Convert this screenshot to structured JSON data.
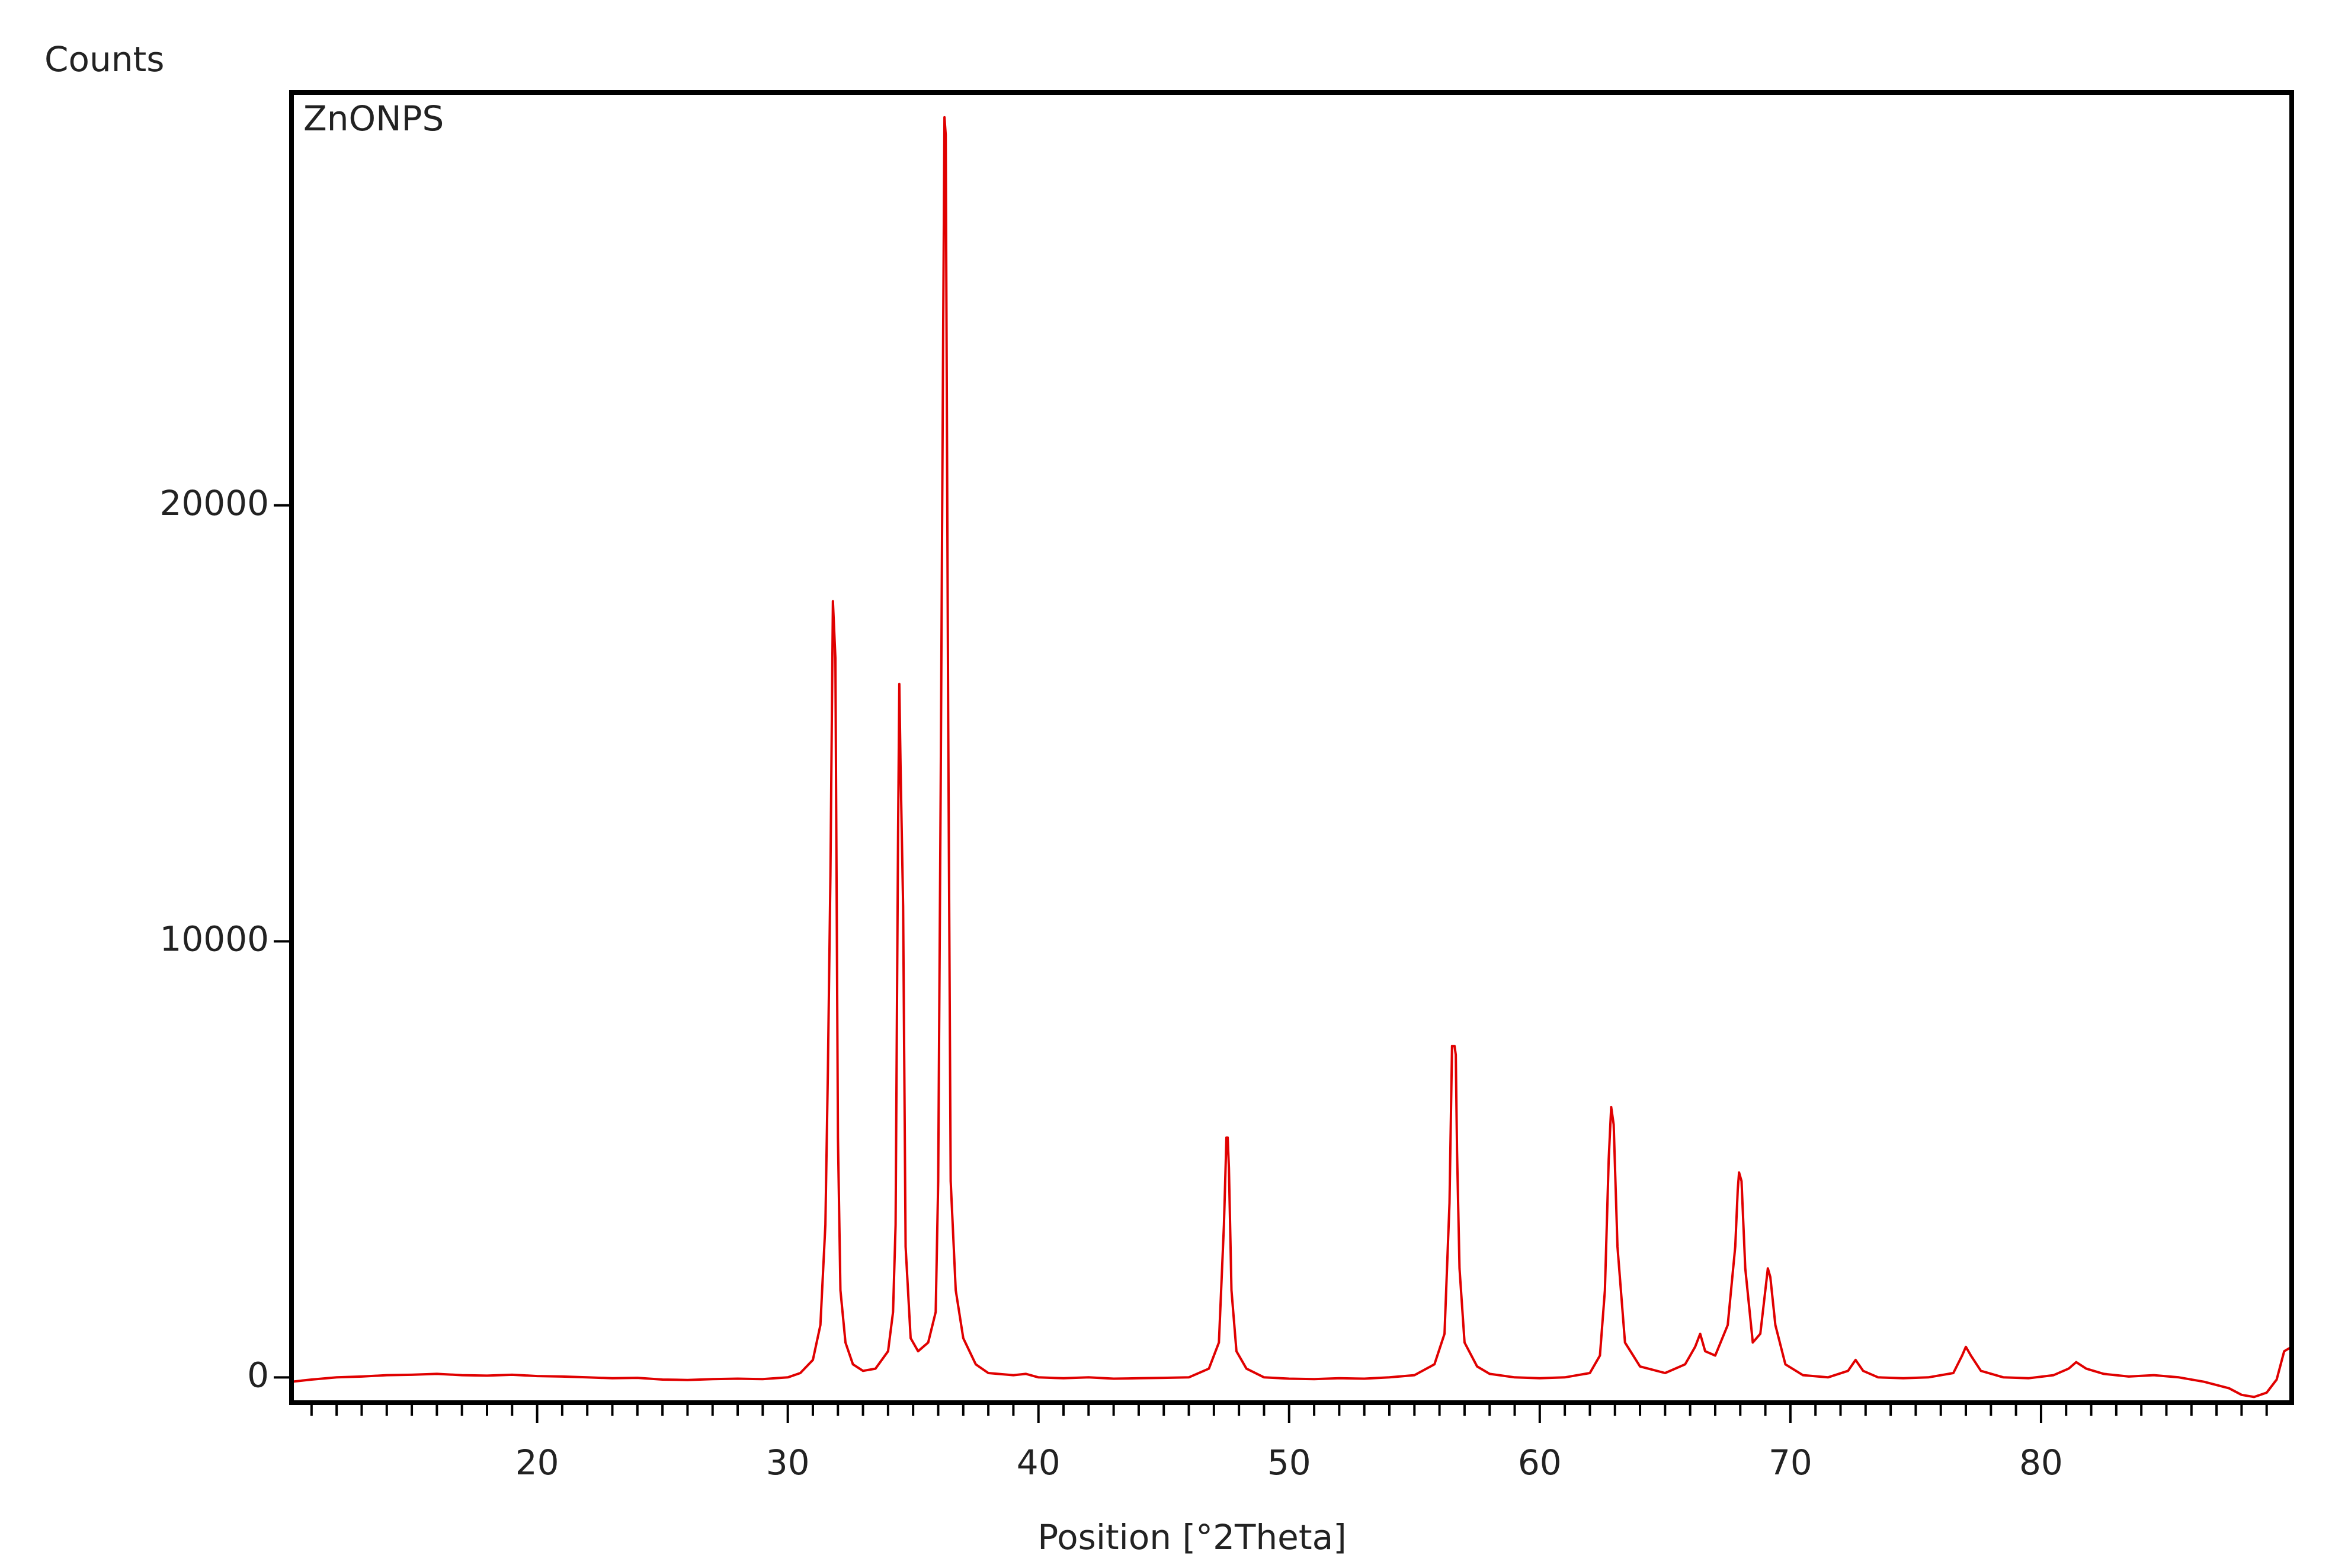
{
  "chart_data": {
    "type": "line",
    "y_axis_title": "Counts",
    "x_axis_title": "Position [°2Theta]",
    "x": [
      10.2,
      11,
      12,
      13,
      14,
      15,
      16,
      17,
      18,
      19,
      20,
      21,
      22,
      23,
      24,
      25,
      26,
      27,
      28,
      29,
      30,
      30.5,
      31,
      31.3,
      31.5,
      31.6,
      31.7,
      31.8,
      31.9,
      32.0,
      32.1,
      32.3,
      32.6,
      33.0,
      33.5,
      34.0,
      34.2,
      34.3,
      34.4,
      34.45,
      34.5,
      34.6,
      34.7,
      34.9,
      35.2,
      35.6,
      35.9,
      36.0,
      36.1,
      36.2,
      36.25,
      36.3,
      36.4,
      36.5,
      36.7,
      37.0,
      37.5,
      38,
      39,
      39.5,
      40,
      41,
      42,
      43,
      44,
      45,
      46,
      46.8,
      47.2,
      47.4,
      47.5,
      47.55,
      47.6,
      47.7,
      47.9,
      48.3,
      49,
      50,
      51,
      52,
      53,
      54,
      55,
      55.8,
      56.2,
      56.4,
      56.5,
      56.6,
      56.65,
      56.7,
      56.8,
      57.0,
      57.5,
      58,
      59,
      60,
      61,
      62,
      62.4,
      62.6,
      62.75,
      62.85,
      62.95,
      63.1,
      63.4,
      64,
      65,
      65.8,
      66.2,
      66.4,
      66.6,
      67.0,
      67.5,
      67.8,
      67.9,
      67.95,
      68.05,
      68.2,
      68.5,
      68.8,
      69.0,
      69.1,
      69.2,
      69.4,
      69.8,
      70.5,
      71.5,
      72.3,
      72.6,
      72.9,
      73.5,
      74.5,
      75.5,
      76.5,
      76.85,
      77.0,
      77.2,
      77.6,
      78.5,
      79.5,
      80.5,
      81.1,
      81.4,
      81.8,
      82.5,
      83.5,
      84.5,
      85.5,
      86.5,
      87.5,
      88.0,
      88.5,
      89.0,
      89.4,
      89.7,
      90
    ],
    "series": [
      {
        "name": "ZnONPS",
        "color": "#e00000",
        "values": [
          -100,
          -50,
          0,
          20,
          50,
          60,
          80,
          50,
          40,
          60,
          30,
          20,
          0,
          -20,
          -10,
          -50,
          -60,
          -40,
          -30,
          -40,
          0,
          100,
          400,
          1200,
          3500,
          7000,
          11500,
          17800,
          16500,
          5500,
          2000,
          800,
          300,
          150,
          200,
          600,
          1500,
          3500,
          12500,
          15900,
          14000,
          10800,
          3000,
          900,
          600,
          800,
          1500,
          4500,
          13500,
          24000,
          28900,
          28500,
          15000,
          4500,
          2000,
          900,
          300,
          100,
          50,
          80,
          0,
          -20,
          0,
          -30,
          -20,
          -10,
          0,
          200,
          800,
          3500,
          5500,
          5500,
          4800,
          2000,
          600,
          200,
          0,
          -30,
          -40,
          -20,
          -30,
          0,
          50,
          300,
          1000,
          4000,
          7600,
          7600,
          7400,
          5200,
          2500,
          800,
          250,
          80,
          0,
          -20,
          0,
          100,
          500,
          2000,
          5000,
          6200,
          5800,
          3000,
          800,
          250,
          100,
          300,
          700,
          1000,
          600,
          500,
          1200,
          3000,
          4300,
          4700,
          4500,
          2500,
          800,
          1000,
          2000,
          2500,
          2300,
          1200,
          300,
          50,
          0,
          150,
          400,
          150,
          0,
          -20,
          0,
          100,
          500,
          700,
          500,
          150,
          0,
          -20,
          50,
          200,
          350,
          200,
          80,
          20,
          50,
          0,
          -100,
          -250,
          -400,
          -450,
          -350,
          -50,
          600,
          700
        ]
      }
    ],
    "xlim": [
      10.2,
      90
    ],
    "ylim": [
      -580,
      29470
    ],
    "xticks": [
      20,
      30,
      40,
      50,
      60,
      70,
      80
    ],
    "xminorticks": [
      11,
      12,
      13,
      14,
      15,
      16,
      17,
      18,
      19,
      21,
      22,
      23,
      24,
      25,
      26,
      27,
      28,
      29,
      31,
      32,
      33,
      34,
      35,
      36,
      37,
      38,
      39,
      41,
      42,
      43,
      44,
      45,
      46,
      47,
      48,
      49,
      51,
      52,
      53,
      54,
      55,
      56,
      57,
      58,
      59,
      61,
      62,
      63,
      64,
      65,
      66,
      67,
      68,
      69,
      71,
      72,
      73,
      74,
      75,
      76,
      77,
      78,
      79,
      81,
      82,
      83,
      84,
      85,
      86,
      87,
      88,
      89
    ],
    "yticks": [
      0,
      10000,
      20000
    ]
  }
}
